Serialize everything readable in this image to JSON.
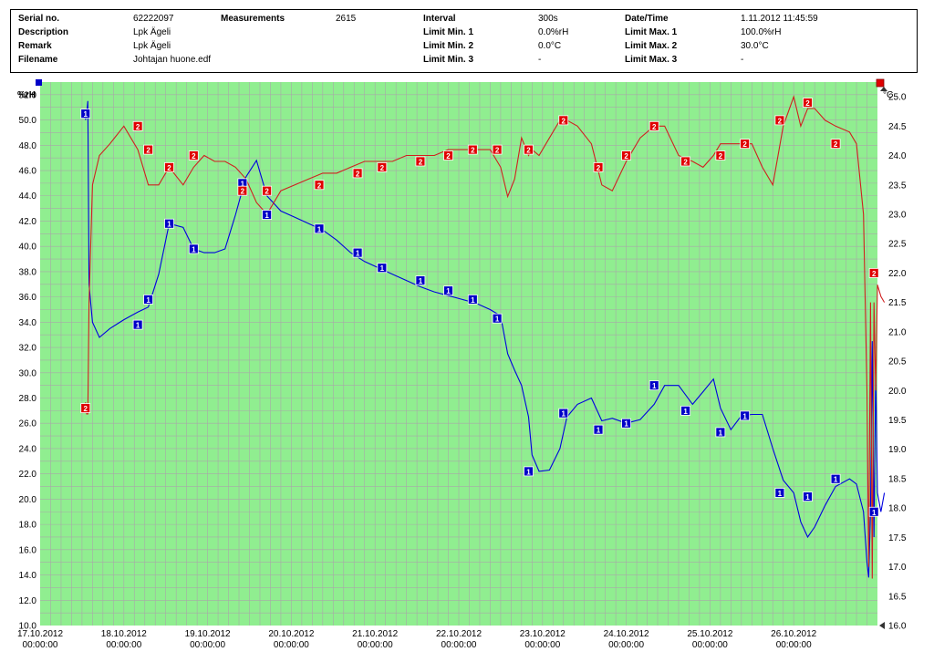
{
  "header": {
    "serial_label": "Serial no.",
    "serial_value": "62222097",
    "measurements_label": "Measurements",
    "measurements_value": "2615",
    "interval_label": "Interval",
    "interval_value": "300s",
    "datetime_label": "Date/Time",
    "datetime_value": "1.11.2012 11:45:59",
    "description_label": "Description",
    "description_value": "Lpk Ägeli",
    "limit_min1_label": "Limit Min. 1",
    "limit_min1_value": "0.0%rH",
    "limit_max1_label": "Limit Max. 1",
    "limit_max1_value": "100.0%rH",
    "remark_label": "Remark",
    "remark_value": "Lpk Ägeli",
    "limit_min2_label": "Limit Min. 2",
    "limit_min2_value": "0.0°C",
    "limit_max2_label": "Limit Max. 2",
    "limit_max2_value": "30.0°C",
    "filename_label": "Filename",
    "filename_value": "Johtajan huone.edf",
    "limit_min3_label": "Limit Min. 3",
    "limit_min3_value": "-",
    "limit_max3_label": "Limit Max. 3",
    "limit_max3_value": "-"
  },
  "colors": {
    "plot_bg": "#90ee90",
    "grid": "#a8a8a8",
    "humidity": "#0000e0",
    "temperature": "#d02020",
    "marker_humidity": "#0000c8",
    "marker_temperature": "#e00000"
  },
  "chart_data": {
    "type": "line",
    "title": "",
    "y_left_label": "%rH",
    "y_right_label": "°C",
    "x_ticks": [
      {
        "date": "17.10.2012",
        "time": "00:00:00"
      },
      {
        "date": "18.10.2012",
        "time": "00:00:00"
      },
      {
        "date": "19.10.2012",
        "time": "00:00:00"
      },
      {
        "date": "20.10.2012",
        "time": "00:00:00"
      },
      {
        "date": "21.10.2012",
        "time": "00:00:00"
      },
      {
        "date": "22.10.2012",
        "time": "00:00:00"
      },
      {
        "date": "23.10.2012",
        "time": "00:00:00"
      },
      {
        "date": "24.10.2012",
        "time": "00:00:00"
      },
      {
        "date": "25.10.2012",
        "time": "00:00:00"
      },
      {
        "date": "26.10.2012",
        "time": "00:00:00"
      }
    ],
    "xlim": [
      "17.10.2012 00:00:00",
      "27.10.2012 00:00:00"
    ],
    "ylim_left": [
      10,
      53
    ],
    "ylim_right": [
      16,
      25.25
    ],
    "y_left_ticks": [
      "10.0",
      "12.0",
      "14.0",
      "16.0",
      "18.0",
      "20.0",
      "22.0",
      "24.0",
      "26.0",
      "28.0",
      "30.0",
      "32.0",
      "34.0",
      "36.0",
      "38.0",
      "40.0",
      "42.0",
      "44.0",
      "46.0",
      "48.0",
      "50.0",
      "52.0"
    ],
    "y_right_ticks": [
      "16.0",
      "16.5",
      "17.0",
      "17.5",
      "18.0",
      "18.5",
      "19.0",
      "19.5",
      "20.0",
      "20.5",
      "21.0",
      "21.5",
      "22.0",
      "22.5",
      "23.0",
      "23.5",
      "24.0",
      "24.5",
      "25.0"
    ],
    "series": [
      {
        "marker": "1",
        "unit": "%rH",
        "axis": "left",
        "points": [
          [
            "17.10.2012 13:00",
            50
          ],
          [
            "17.10.2012 13:20",
            50.5
          ],
          [
            "17.10.2012 13:40",
            51.5
          ],
          [
            "17.10.2012 14:00",
            37
          ],
          [
            "17.10.2012 15:00",
            34
          ],
          [
            "17.10.2012 17:00",
            32.8
          ],
          [
            "17.10.2012 20:00",
            33.5
          ],
          [
            "18.10.2012 00:00",
            34.2
          ],
          [
            "18.10.2012 04:00",
            34.8
          ],
          [
            "18.10.2012 07:00",
            35.2
          ],
          [
            "18.10.2012 10:00",
            37.8
          ],
          [
            "18.10.2012 13:00",
            41.8
          ],
          [
            "18.10.2012 17:00",
            41.5
          ],
          [
            "18.10.2012 20:00",
            39.8
          ],
          [
            "18.10.2012 23:00",
            39.5
          ],
          [
            "19.10.2012 02:00",
            39.5
          ],
          [
            "19.10.2012 05:00",
            39.8
          ],
          [
            "19.10.2012 08:00",
            42.5
          ],
          [
            "19.10.2012 11:00",
            45.5
          ],
          [
            "19.10.2012 14:00",
            46.8
          ],
          [
            "19.10.2012 17:00",
            44
          ],
          [
            "19.10.2012 21:00",
            42.8
          ],
          [
            "20.10.2012 01:00",
            42.3
          ],
          [
            "20.10.2012 05:00",
            41.8
          ],
          [
            "20.10.2012 09:00",
            41.3
          ],
          [
            "20.10.2012 13:00",
            40.5
          ],
          [
            "20.10.2012 17:00",
            39.5
          ],
          [
            "20.10.2012 21:00",
            38.8
          ],
          [
            "21.10.2012 01:00",
            38.3
          ],
          [
            "21.10.2012 05:00",
            37.8
          ],
          [
            "21.10.2012 09:00",
            37.3
          ],
          [
            "21.10.2012 13:00",
            36.8
          ],
          [
            "21.10.2012 17:00",
            36.4
          ],
          [
            "21.10.2012 21:00",
            36.1
          ],
          [
            "22.10.2012 01:00",
            35.8
          ],
          [
            "22.10.2012 05:00",
            35.5
          ],
          [
            "22.10.2012 09:00",
            35
          ],
          [
            "22.10.2012 12:00",
            34.5
          ],
          [
            "22.10.2012 14:00",
            31.5
          ],
          [
            "22.10.2012 16:00",
            30.2
          ],
          [
            "22.10.2012 18:00",
            29
          ],
          [
            "22.10.2012 20:00",
            26.5
          ],
          [
            "22.10.2012 21:00",
            23.5
          ],
          [
            "22.10.2012 23:00",
            22.2
          ],
          [
            "23.10.2012 02:00",
            22.3
          ],
          [
            "23.10.2012 05:00",
            24
          ],
          [
            "23.10.2012 07:00",
            26.5
          ],
          [
            "23.10.2012 10:00",
            27.5
          ],
          [
            "23.10.2012 14:00",
            28
          ],
          [
            "23.10.2012 17:00",
            26.2
          ],
          [
            "23.10.2012 20:00",
            26.4
          ],
          [
            "24.10.2012 00:00",
            26
          ],
          [
            "24.10.2012 04:00",
            26.3
          ],
          [
            "24.10.2012 08:00",
            27.5
          ],
          [
            "24.10.2012 11:00",
            29
          ],
          [
            "24.10.2012 15:00",
            29
          ],
          [
            "24.10.2012 19:00",
            27.5
          ],
          [
            "24.10.2012 22:00",
            28.5
          ],
          [
            "25.10.2012 01:00",
            29.5
          ],
          [
            "25.10.2012 03:00",
            27.2
          ],
          [
            "25.10.2012 06:00",
            25.5
          ],
          [
            "25.10.2012 09:00",
            26.6
          ],
          [
            "25.10.2012 12:00",
            26.7
          ],
          [
            "25.10.2012 15:00",
            26.7
          ],
          [
            "25.10.2012 18:00",
            24
          ],
          [
            "25.10.2012 21:00",
            21.5
          ],
          [
            "26.10.2012 00:00",
            20.5
          ],
          [
            "26.10.2012 02:00",
            18.2
          ],
          [
            "26.10.2012 04:00",
            17
          ],
          [
            "26.10.2012 06:00",
            17.8
          ],
          [
            "26.10.2012 09:00",
            19.5
          ],
          [
            "26.10.2012 12:00",
            21
          ],
          [
            "26.10.2012 16:00",
            21.6
          ],
          [
            "26.10.2012 18:00",
            21.2
          ],
          [
            "26.10.2012 20:00",
            19
          ],
          [
            "26.10.2012 21:00",
            15
          ],
          [
            "26.10.2012 21:30",
            13.8
          ],
          [
            "26.10.2012 22:00",
            19
          ],
          [
            "26.10.2012 22:30",
            32.5
          ],
          [
            "26.10.2012 23:00",
            17
          ],
          [
            "26.10.2012 23:30",
            30
          ],
          [
            "27.10.2012 00:00",
            20.5
          ],
          [
            "27.10.2012 01:00",
            19
          ],
          [
            "27.10.2012 02:00",
            20.5
          ]
        ],
        "markers": [
          [
            "17.10.2012 13:00",
            50.5
          ],
          [
            "18.10.2012 04:00",
            33.8
          ],
          [
            "18.10.2012 07:00",
            35.8
          ],
          [
            "18.10.2012 13:00",
            41.8
          ],
          [
            "18.10.2012 20:00",
            39.8
          ],
          [
            "19.10.2012 10:00",
            45
          ],
          [
            "19.10.2012 17:00",
            42.5
          ],
          [
            "20.10.2012 08:00",
            41.4
          ],
          [
            "20.10.2012 19:00",
            39.5
          ],
          [
            "21.10.2012 02:00",
            38.3
          ],
          [
            "21.10.2012 13:00",
            37.3
          ],
          [
            "21.10.2012 21:00",
            36.5
          ],
          [
            "22.10.2012 04:00",
            35.8
          ],
          [
            "22.10.2012 11:00",
            34.3
          ],
          [
            "22.10.2012 20:00",
            22.2
          ],
          [
            "23.10.2012 06:00",
            26.8
          ],
          [
            "23.10.2012 16:00",
            25.5
          ],
          [
            "24.10.2012 00:00",
            26
          ],
          [
            "24.10.2012 08:00",
            29
          ],
          [
            "24.10.2012 17:00",
            27
          ],
          [
            "25.10.2012 03:00",
            25.3
          ],
          [
            "25.10.2012 10:00",
            26.6
          ],
          [
            "25.10.2012 20:00",
            20.5
          ],
          [
            "26.10.2012 04:00",
            20.2
          ],
          [
            "26.10.2012 12:00",
            21.6
          ],
          [
            "26.10.2012 23:00",
            19
          ]
        ]
      },
      {
        "marker": "2",
        "unit": "°C",
        "axis": "right",
        "points": [
          [
            "17.10.2012 13:00",
            19.8
          ],
          [
            "17.10.2012 13:20",
            19.6
          ],
          [
            "17.10.2012 13:40",
            19.6
          ],
          [
            "17.10.2012 14:00",
            21.5
          ],
          [
            "17.10.2012 15:00",
            23.5
          ],
          [
            "17.10.2012 17:00",
            24
          ],
          [
            "17.10.2012 20:00",
            24.2
          ],
          [
            "18.10.2012 00:00",
            24.5
          ],
          [
            "18.10.2012 04:00",
            24.1
          ],
          [
            "18.10.2012 07:00",
            23.5
          ],
          [
            "18.10.2012 10:00",
            23.5
          ],
          [
            "18.10.2012 13:00",
            23.8
          ],
          [
            "18.10.2012 17:00",
            23.5
          ],
          [
            "18.10.2012 20:00",
            23.8
          ],
          [
            "18.10.2012 23:00",
            24
          ],
          [
            "19.10.2012 02:00",
            23.9
          ],
          [
            "19.10.2012 05:00",
            23.9
          ],
          [
            "19.10.2012 08:00",
            23.8
          ],
          [
            "19.10.2012 11:00",
            23.6
          ],
          [
            "19.10.2012 14:00",
            23.2
          ],
          [
            "19.10.2012 17:00",
            23
          ],
          [
            "19.10.2012 21:00",
            23.4
          ],
          [
            "20.10.2012 01:00",
            23.5
          ],
          [
            "20.10.2012 05:00",
            23.6
          ],
          [
            "20.10.2012 09:00",
            23.7
          ],
          [
            "20.10.2012 13:00",
            23.7
          ],
          [
            "20.10.2012 17:00",
            23.8
          ],
          [
            "20.10.2012 21:00",
            23.9
          ],
          [
            "21.10.2012 01:00",
            23.9
          ],
          [
            "21.10.2012 05:00",
            23.9
          ],
          [
            "21.10.2012 09:00",
            24
          ],
          [
            "21.10.2012 13:00",
            24
          ],
          [
            "21.10.2012 17:00",
            24
          ],
          [
            "21.10.2012 21:00",
            24.1
          ],
          [
            "22.10.2012 01:00",
            24.1
          ],
          [
            "22.10.2012 05:00",
            24.1
          ],
          [
            "22.10.2012 09:00",
            24.1
          ],
          [
            "22.10.2012 12:00",
            23.8
          ],
          [
            "22.10.2012 14:00",
            23.3
          ],
          [
            "22.10.2012 16:00",
            23.6
          ],
          [
            "22.10.2012 18:00",
            24.3
          ],
          [
            "22.10.2012 20:00",
            24
          ],
          [
            "22.10.2012 21:00",
            24.1
          ],
          [
            "22.10.2012 23:00",
            24
          ],
          [
            "23.10.2012 02:00",
            24.3
          ],
          [
            "23.10.2012 05:00",
            24.6
          ],
          [
            "23.10.2012 07:00",
            24.6
          ],
          [
            "23.10.2012 10:00",
            24.5
          ],
          [
            "23.10.2012 14:00",
            24.2
          ],
          [
            "23.10.2012 17:00",
            23.5
          ],
          [
            "23.10.2012 20:00",
            23.4
          ],
          [
            "24.10.2012 00:00",
            23.9
          ],
          [
            "24.10.2012 04:00",
            24.3
          ],
          [
            "24.10.2012 08:00",
            24.5
          ],
          [
            "24.10.2012 11:00",
            24.5
          ],
          [
            "24.10.2012 15:00",
            24
          ],
          [
            "24.10.2012 19:00",
            23.9
          ],
          [
            "24.10.2012 22:00",
            23.8
          ],
          [
            "25.10.2012 01:00",
            24
          ],
          [
            "25.10.2012 03:00",
            24.2
          ],
          [
            "25.10.2012 06:00",
            24.2
          ],
          [
            "25.10.2012 09:00",
            24.2
          ],
          [
            "25.10.2012 12:00",
            24.2
          ],
          [
            "25.10.2012 15:00",
            23.8
          ],
          [
            "25.10.2012 18:00",
            23.5
          ],
          [
            "25.10.2012 21:00",
            24.5
          ],
          [
            "26.10.2012 00:00",
            25
          ],
          [
            "26.10.2012 02:00",
            24.5
          ],
          [
            "26.10.2012 04:00",
            24.8
          ],
          [
            "26.10.2012 06:00",
            24.8
          ],
          [
            "26.10.2012 09:00",
            24.6
          ],
          [
            "26.10.2012 12:00",
            24.5
          ],
          [
            "26.10.2012 16:00",
            24.4
          ],
          [
            "26.10.2012 18:00",
            24.2
          ],
          [
            "26.10.2012 20:00",
            23
          ],
          [
            "26.10.2012 21:00",
            20
          ],
          [
            "26.10.2012 21:30",
            17
          ],
          [
            "26.10.2012 22:00",
            21.5
          ],
          [
            "26.10.2012 22:30",
            16.8
          ],
          [
            "26.10.2012 23:00",
            21.5
          ],
          [
            "26.10.2012 23:30",
            20
          ],
          [
            "27.10.2012 00:00",
            21.8
          ],
          [
            "27.10.2012 01:00",
            21.6
          ],
          [
            "27.10.2012 02:00",
            21.5
          ]
        ],
        "markers": [
          [
            "17.10.2012 13:00",
            19.7
          ],
          [
            "18.10.2012 04:00",
            24.5
          ],
          [
            "18.10.2012 07:00",
            24.1
          ],
          [
            "18.10.2012 13:00",
            23.8
          ],
          [
            "18.10.2012 20:00",
            24
          ],
          [
            "19.10.2012 10:00",
            23.4
          ],
          [
            "19.10.2012 17:00",
            23.4
          ],
          [
            "20.10.2012 08:00",
            23.5
          ],
          [
            "20.10.2012 19:00",
            23.7
          ],
          [
            "21.10.2012 02:00",
            23.8
          ],
          [
            "21.10.2012 13:00",
            23.9
          ],
          [
            "21.10.2012 21:00",
            24
          ],
          [
            "22.10.2012 04:00",
            24.1
          ],
          [
            "22.10.2012 11:00",
            24.1
          ],
          [
            "22.10.2012 20:00",
            24.1
          ],
          [
            "23.10.2012 06:00",
            24.6
          ],
          [
            "23.10.2012 16:00",
            23.8
          ],
          [
            "24.10.2012 00:00",
            24
          ],
          [
            "24.10.2012 08:00",
            24.5
          ],
          [
            "24.10.2012 17:00",
            23.9
          ],
          [
            "25.10.2012 03:00",
            24
          ],
          [
            "25.10.2012 10:00",
            24.2
          ],
          [
            "25.10.2012 20:00",
            24.6
          ],
          [
            "26.10.2012 04:00",
            24.9
          ],
          [
            "26.10.2012 12:00",
            24.2
          ],
          [
            "26.10.2012 23:00",
            22
          ]
        ]
      }
    ],
    "grid": true,
    "legend": "none"
  }
}
